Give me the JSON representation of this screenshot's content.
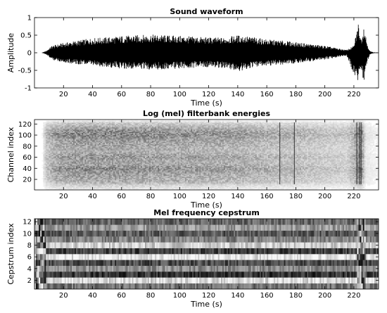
{
  "chart_data": [
    {
      "type": "line",
      "title": "Sound waveform",
      "xlabel": "Time (s)",
      "ylabel": "Amplitude",
      "xlim": [
        0,
        237
      ],
      "ylim": [
        -1,
        1
      ],
      "x_ticks": [
        20,
        40,
        60,
        80,
        100,
        120,
        140,
        160,
        180,
        200,
        220
      ],
      "y_ticks": [
        -1,
        -0.5,
        0,
        0.5,
        1
      ],
      "y_tick_labels": [
        "-1",
        "-0.5",
        "0",
        "0.5",
        "1"
      ],
      "series": [
        {
          "color": "#000000",
          "envelope": {
            "x": [
              0,
              5,
              8,
              12,
              20,
              30,
              40,
              50,
              60,
              70,
              80,
              90,
              100,
              110,
              120,
              130,
              140,
              150,
              160,
              170,
              180,
              190,
              200,
              210,
              215,
              220,
              223,
              225,
              227,
              229,
              231,
              233,
              237
            ],
            "upper": [
              0,
              0,
              0.05,
              0.2,
              0.28,
              0.35,
              0.42,
              0.44,
              0.48,
              0.5,
              0.52,
              0.5,
              0.48,
              0.46,
              0.44,
              0.43,
              0.5,
              0.45,
              0.38,
              0.35,
              0.3,
              0.25,
              0.2,
              0.12,
              0.08,
              0.2,
              0.85,
              0.4,
              0.8,
              0.3,
              0.05,
              0.02,
              0
            ],
            "lower": [
              0,
              0,
              -0.05,
              -0.2,
              -0.28,
              -0.33,
              -0.38,
              -0.42,
              -0.45,
              -0.46,
              -0.48,
              -0.47,
              -0.45,
              -0.43,
              -0.42,
              -0.43,
              -0.55,
              -0.42,
              -0.38,
              -0.34,
              -0.3,
              -0.25,
              -0.2,
              -0.12,
              -0.08,
              -0.6,
              -0.8,
              -0.5,
              -0.85,
              -0.3,
              -0.05,
              -0.02,
              0
            ]
          }
        }
      ]
    },
    {
      "type": "heatmap",
      "title": "Log (mel) filterbank energies",
      "xlabel": "Time (s)",
      "ylabel": "Channel index",
      "xlim": [
        0,
        237
      ],
      "ylim": [
        1,
        128
      ],
      "x_ticks": [
        20,
        40,
        60,
        80,
        100,
        120,
        140,
        160,
        180,
        200,
        220
      ],
      "y_ticks": [
        20,
        40,
        60,
        80,
        100,
        120
      ],
      "colormap": "grayscale (dark = high energy)",
      "row_profile": {
        "channel": [
          1,
          10,
          15,
          25,
          40,
          45,
          55,
          60,
          70,
          80,
          90,
          100,
          110,
          115,
          122,
          128
        ],
        "level": [
          0.1,
          0.25,
          0.45,
          0.5,
          0.65,
          0.55,
          0.5,
          0.6,
          0.45,
          0.5,
          0.55,
          0.7,
          0.6,
          0.45,
          0.3,
          0.0
        ]
      },
      "time_profile": {
        "t": [
          0,
          5,
          8,
          15,
          30,
          50,
          80,
          110,
          140,
          160,
          180,
          200,
          215,
          220,
          224,
          226,
          228,
          237
        ],
        "level": [
          0,
          0,
          0.5,
          0.75,
          0.85,
          0.85,
          0.8,
          0.75,
          0.7,
          0.6,
          0.55,
          0.45,
          0.4,
          0.6,
          1.0,
          0.8,
          0.2,
          0.1
        ]
      },
      "dark_vertical_lines_at_s": [
        169,
        179,
        222,
        224,
        225
      ]
    },
    {
      "type": "heatmap",
      "title": "Mel frequency cepstrum",
      "xlabel": "Time (s)",
      "ylabel": "Cepstrum index",
      "xlim": [
        0,
        237
      ],
      "ylim": [
        0.5,
        12.5
      ],
      "x_ticks": [
        20,
        40,
        60,
        80,
        100,
        120,
        140,
        160,
        180,
        200,
        220
      ],
      "y_ticks": [
        2,
        4,
        6,
        8,
        10,
        12
      ],
      "colormap": "grayscale",
      "row_brightness": [
        0.45,
        0.85,
        0.2,
        0.55,
        0.3,
        0.9,
        0.25,
        0.8,
        0.5,
        0.35,
        0.6,
        0.4
      ]
    }
  ]
}
